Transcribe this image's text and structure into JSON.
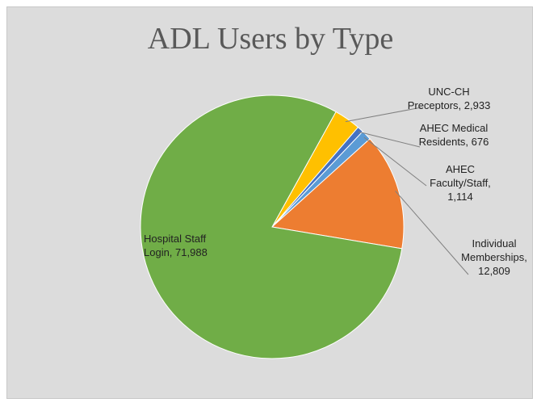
{
  "chart_data": {
    "type": "pie",
    "title": "ADL Users by Type",
    "slices": [
      {
        "name": "UNC-CH Preceptors",
        "value": 2933,
        "value_label": "2,933",
        "color": "#FFC000",
        "label_lines": [
          "UNC-CH",
          "Preceptors,  2,933"
        ]
      },
      {
        "name": "AHEC Medical Residents",
        "value": 676,
        "value_label": "676",
        "color": "#4472C4",
        "label_lines": [
          "AHEC Medical",
          "Residents,  676"
        ]
      },
      {
        "name": "AHEC Faculty/Staff",
        "value": 1114,
        "value_label": "1,114",
        "color": "#5B9BD5",
        "label_lines": [
          "AHEC",
          "Faculty/Staff,",
          "1,114"
        ]
      },
      {
        "name": "Individual Memberships",
        "value": 12809,
        "value_label": "12,809",
        "color": "#ED7D31",
        "label_lines": [
          "Individual",
          "Memberships,",
          "12,809"
        ]
      },
      {
        "name": "Hospital Staff Login",
        "value": 71988,
        "value_label": "71,988",
        "color": "#70AD47",
        "label_lines": [
          "Hospital Staff",
          "Login,  71,988"
        ]
      }
    ],
    "legend": "none"
  }
}
